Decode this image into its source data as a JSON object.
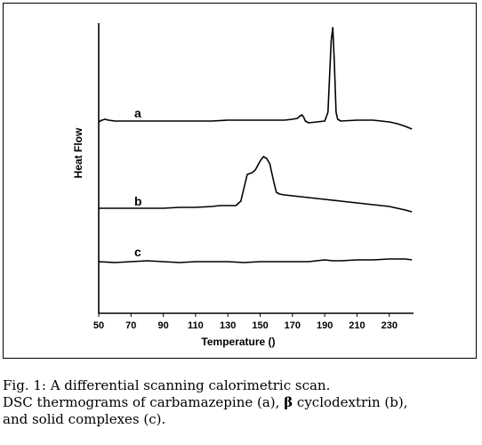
{
  "chart_data": {
    "type": "line",
    "title": "",
    "xlabel": "Temperature ()",
    "ylabel": "Heat Flow",
    "xlim": [
      50,
      245
    ],
    "xticks": [
      50,
      70,
      90,
      110,
      130,
      150,
      170,
      190,
      210,
      230
    ],
    "grid": false,
    "series": [
      {
        "name": "a",
        "points": [
          [
            50,
            111
          ],
          [
            52,
            109
          ],
          [
            54,
            108
          ],
          [
            56,
            109
          ],
          [
            60,
            110
          ],
          [
            70,
            110
          ],
          [
            80,
            110
          ],
          [
            90,
            110
          ],
          [
            100,
            110
          ],
          [
            110,
            110
          ],
          [
            120,
            110
          ],
          [
            130,
            109
          ],
          [
            140,
            109
          ],
          [
            150,
            109
          ],
          [
            160,
            109
          ],
          [
            165,
            109
          ],
          [
            170,
            108
          ],
          [
            173,
            107
          ],
          [
            175,
            104
          ],
          [
            176,
            103
          ],
          [
            177,
            106
          ],
          [
            178,
            110
          ],
          [
            180,
            112
          ],
          [
            185,
            111
          ],
          [
            190,
            110
          ],
          [
            192,
            100
          ],
          [
            193,
            60
          ],
          [
            194,
            20
          ],
          [
            195,
            5
          ],
          [
            196,
            45
          ],
          [
            197,
            100
          ],
          [
            198,
            108
          ],
          [
            200,
            110
          ],
          [
            210,
            109
          ],
          [
            220,
            109
          ],
          [
            230,
            111
          ],
          [
            235,
            113
          ],
          [
            240,
            116
          ],
          [
            244,
            119
          ]
        ]
      },
      {
        "name": "b",
        "points": [
          [
            50,
            208
          ],
          [
            60,
            208
          ],
          [
            70,
            208
          ],
          [
            80,
            208
          ],
          [
            90,
            208
          ],
          [
            100,
            207
          ],
          [
            110,
            207
          ],
          [
            120,
            206
          ],
          [
            125,
            205
          ],
          [
            130,
            205
          ],
          [
            135,
            205
          ],
          [
            138,
            200
          ],
          [
            140,
            185
          ],
          [
            142,
            170
          ],
          [
            145,
            168
          ],
          [
            147,
            165
          ],
          [
            150,
            155
          ],
          [
            152,
            150
          ],
          [
            154,
            152
          ],
          [
            156,
            158
          ],
          [
            158,
            175
          ],
          [
            160,
            190
          ],
          [
            162,
            192
          ],
          [
            165,
            193
          ],
          [
            170,
            194
          ],
          [
            180,
            196
          ],
          [
            190,
            198
          ],
          [
            200,
            200
          ],
          [
            210,
            202
          ],
          [
            220,
            204
          ],
          [
            230,
            206
          ],
          [
            240,
            210
          ],
          [
            244,
            212
          ]
        ]
      },
      {
        "name": "c",
        "points": [
          [
            50,
            268
          ],
          [
            60,
            269
          ],
          [
            70,
            268
          ],
          [
            80,
            267
          ],
          [
            90,
            268
          ],
          [
            100,
            269
          ],
          [
            110,
            268
          ],
          [
            120,
            268
          ],
          [
            130,
            268
          ],
          [
            140,
            269
          ],
          [
            150,
            268
          ],
          [
            160,
            268
          ],
          [
            170,
            268
          ],
          [
            180,
            268
          ],
          [
            190,
            266
          ],
          [
            195,
            267
          ],
          [
            200,
            267
          ],
          [
            210,
            266
          ],
          [
            220,
            266
          ],
          [
            230,
            265
          ],
          [
            240,
            265
          ],
          [
            244,
            266
          ]
        ]
      }
    ]
  },
  "caption": {
    "line1": "Fig. 1: A differential scanning calorimetric scan.",
    "line2_pre": "DSC thermograms of carbamazepine (a), ",
    "beta": "β",
    "line2_post": " cyclodextrin (b),",
    "line3": "and solid complexes (c)."
  }
}
